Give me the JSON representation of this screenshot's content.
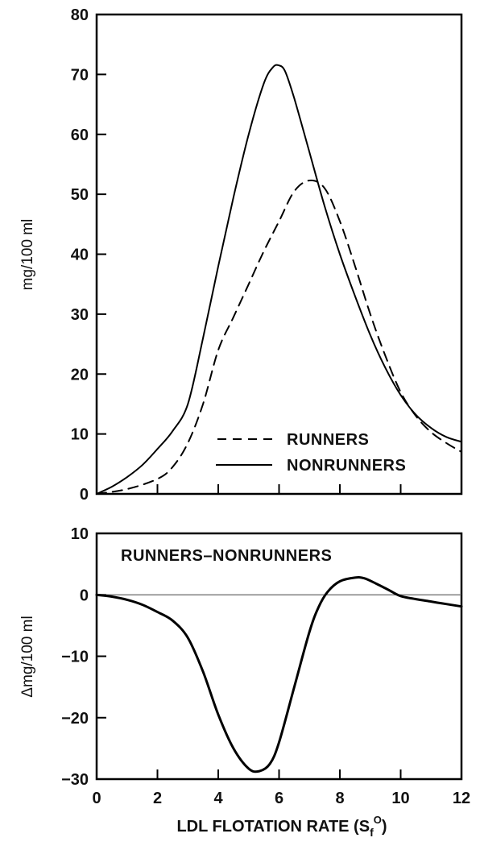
{
  "chart_data": [
    {
      "type": "line",
      "panel": "top",
      "xlabel": "",
      "ylabel": "mg/100 ml",
      "xlim": [
        0,
        12
      ],
      "ylim": [
        0,
        80
      ],
      "x_ticks": [
        0,
        2,
        4,
        6,
        8,
        10,
        12
      ],
      "y_ticks": [
        0,
        10,
        20,
        30,
        40,
        50,
        60,
        70,
        80
      ],
      "y_tick_labels": [
        "0",
        "10",
        "20",
        "30",
        "40",
        "50",
        "60",
        "70",
        "80"
      ],
      "legend_position": "bottom-right",
      "series": [
        {
          "name": "RUNNERS",
          "style": "dashed",
          "x": [
            0,
            1,
            2,
            2.5,
            3,
            3.5,
            4,
            4.5,
            5,
            5.5,
            6,
            6.5,
            7,
            7.5,
            8,
            8.5,
            9,
            9.5,
            10,
            10.5,
            11,
            11.5,
            12
          ],
          "y": [
            0,
            0.8,
            2.5,
            4.5,
            8.5,
            15,
            24,
            29.5,
            35,
            40.5,
            45.5,
            50.5,
            52.3,
            51,
            45.5,
            38,
            30,
            23,
            17,
            13,
            10.3,
            8.5,
            7
          ]
        },
        {
          "name": "NONRUNNERS",
          "style": "solid",
          "x": [
            0,
            0.5,
            1,
            1.5,
            2,
            2.5,
            3,
            3.5,
            4,
            4.5,
            5,
            5.5,
            5.8,
            6,
            6.2,
            6.5,
            7,
            7.5,
            8,
            8.5,
            9,
            9.5,
            10,
            10.5,
            11,
            11.5,
            12
          ],
          "y": [
            0,
            1.2,
            2.8,
            4.8,
            7.5,
            10.5,
            15,
            26,
            38,
            49.5,
            60,
            68.5,
            71.2,
            71.5,
            70.5,
            66,
            57,
            48,
            40,
            33,
            26.5,
            21,
            16.5,
            13.2,
            11,
            9.5,
            8.7
          ]
        }
      ]
    },
    {
      "type": "line",
      "panel": "bottom",
      "annotation": "RUNNERS–NONRUNNERS",
      "xlabel": "LDL FLOTATION RATE (S",
      "xlabel_sub": "f",
      "xlabel_sup": "O",
      "xlabel_close": ")",
      "ylabel": "Δmg/100 ml",
      "xlim": [
        0,
        12
      ],
      "ylim": [
        -30,
        10
      ],
      "x_ticks": [
        0,
        2,
        4,
        6,
        8,
        10,
        12
      ],
      "x_tick_labels": [
        "0",
        "2",
        "4",
        "6",
        "8",
        "10",
        "12"
      ],
      "y_ticks": [
        -30,
        -20,
        -10,
        0,
        10
      ],
      "y_tick_labels": [
        "−30",
        "−20",
        "−10",
        "0",
        "10"
      ],
      "reference_line": 0,
      "series": [
        {
          "name": "",
          "style": "solid",
          "x": [
            0,
            0.5,
            1,
            1.5,
            2,
            2.5,
            3,
            3.5,
            4,
            4.5,
            5,
            5.35,
            5.7,
            6,
            6.5,
            7,
            7.3,
            7.6,
            8,
            8.5,
            8.8,
            9.2,
            9.6,
            10,
            10.5,
            11,
            11.5,
            12
          ],
          "y": [
            0,
            -0.3,
            -0.8,
            -1.6,
            -2.8,
            -4.2,
            -7,
            -12.5,
            -19.5,
            -25,
            -28.3,
            -28.7,
            -27.5,
            -24,
            -15,
            -6,
            -2,
            0.5,
            2.2,
            2.8,
            2.7,
            1.8,
            0.8,
            -0.2,
            -0.7,
            -1.1,
            -1.5,
            -1.9
          ]
        }
      ]
    }
  ]
}
